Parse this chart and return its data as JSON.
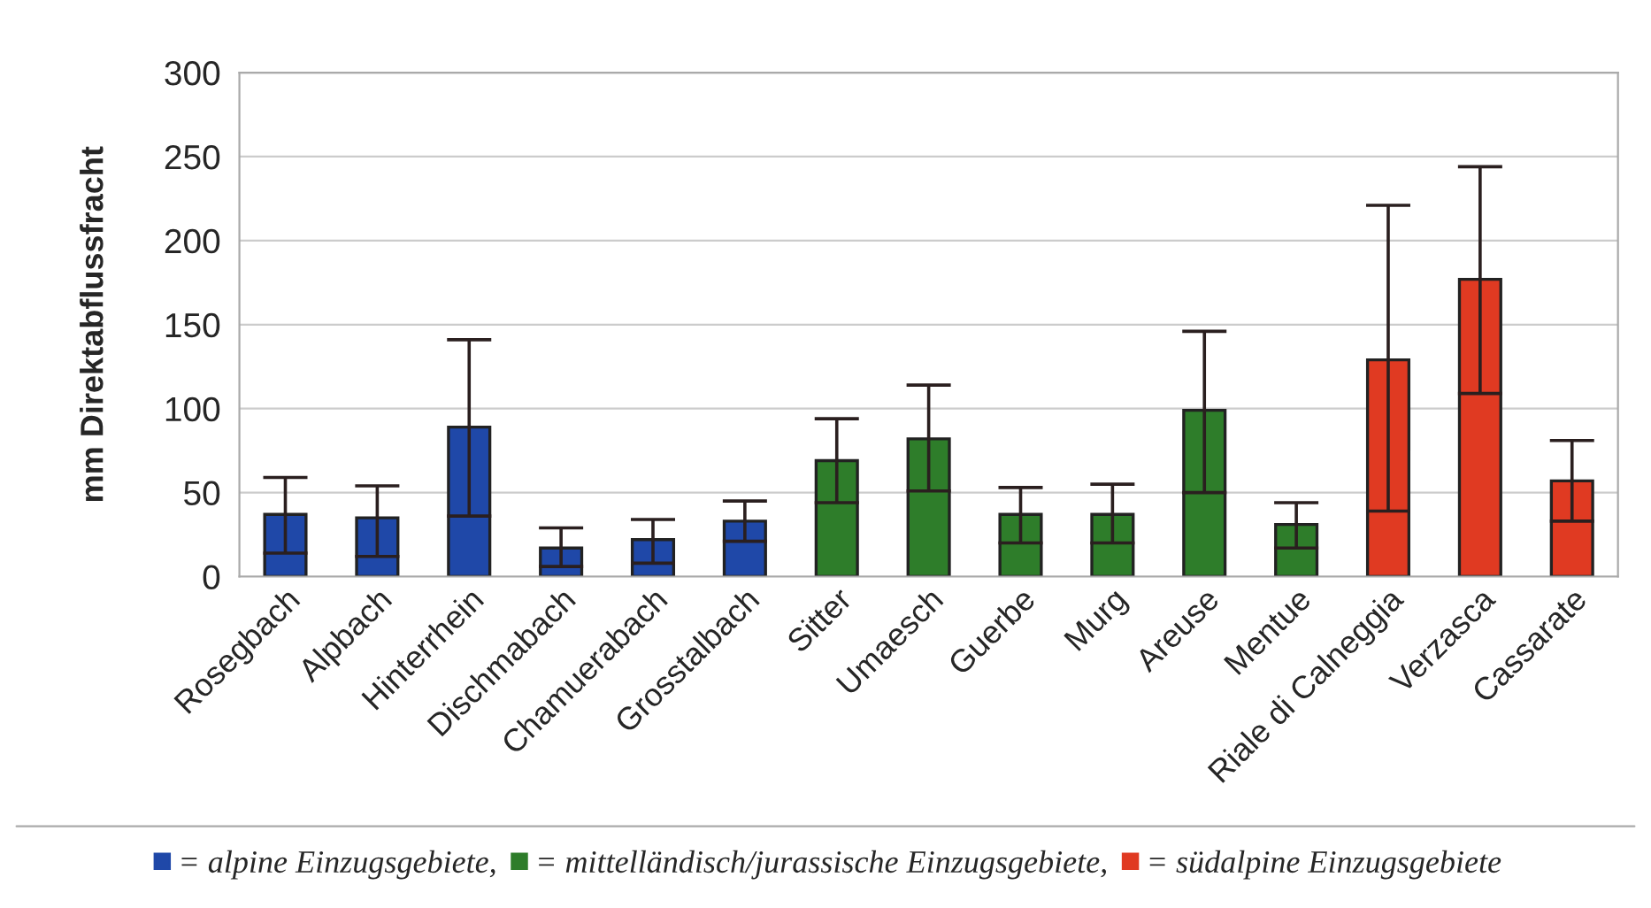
{
  "chart_data": {
    "type": "bar",
    "ylabel": "mm Direktabflussfracht",
    "categories": [
      "Rosegbach",
      "Alpbach",
      "Hinterrhein",
      "Dischmabach",
      "Chamuerabach",
      "Grosstalbach",
      "Sitter",
      "Umaesch",
      "Guerbe",
      "Murg",
      "Areuse",
      "Mentue",
      "Riale di Calneggia",
      "Verzasca",
      "Cassarate"
    ],
    "series": [
      {
        "name": "= alpine Einzugsgebiete,",
        "color": "#1f48a8",
        "values": [
          37,
          35,
          89,
          17,
          22,
          33,
          null,
          null,
          null,
          null,
          null,
          null,
          null,
          null,
          null
        ],
        "errors": [
          [
            14,
            59
          ],
          [
            12,
            54
          ],
          [
            36,
            141
          ],
          [
            6,
            29
          ],
          [
            8,
            34
          ],
          [
            21,
            45
          ],
          null,
          null,
          null,
          null,
          null,
          null,
          null,
          null,
          null
        ]
      },
      {
        "name": "= mittelländisch/jurassische Einzugsgebiete,",
        "color": "#2e7d2a",
        "values": [
          null,
          null,
          null,
          null,
          null,
          null,
          69,
          82,
          37,
          37,
          99,
          31,
          null,
          null,
          null
        ],
        "errors": [
          null,
          null,
          null,
          null,
          null,
          null,
          [
            44,
            94
          ],
          [
            51,
            114
          ],
          [
            20,
            53
          ],
          [
            20,
            55
          ],
          [
            50,
            146
          ],
          [
            17,
            44
          ],
          null,
          null,
          null
        ]
      },
      {
        "name": "= südalpine Einzugsgebiete",
        "color": "#e03a22",
        "values": [
          null,
          null,
          null,
          null,
          null,
          null,
          null,
          null,
          null,
          null,
          null,
          null,
          129,
          177,
          57
        ],
        "errors": [
          null,
          null,
          null,
          null,
          null,
          null,
          null,
          null,
          null,
          null,
          null,
          null,
          [
            39,
            221
          ],
          [
            109,
            244
          ],
          [
            33,
            81
          ]
        ]
      }
    ],
    "ylim": [
      0,
      300
    ],
    "yticks": [
      0,
      50,
      100,
      150,
      200,
      250,
      300
    ],
    "grid": "y",
    "legend": "bottom"
  }
}
